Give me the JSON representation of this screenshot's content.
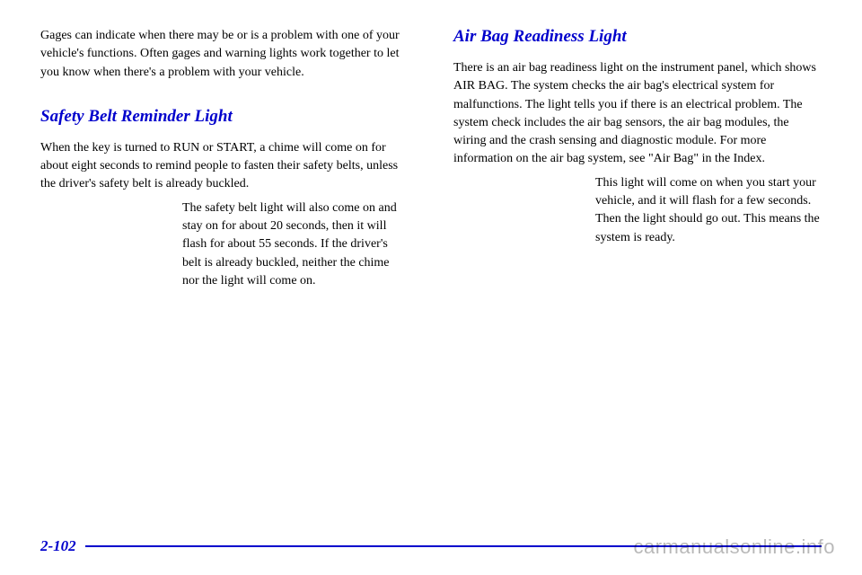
{
  "left": {
    "intro": "Gages can indicate when there may be or is a problem with one of your vehicle's functions. Often gages and warning lights work together to let you know when there's a problem with your vehicle.",
    "heading": "Safety Belt Reminder Light",
    "lead": "When the key is turned to RUN or START, a chime will come on for about eight seconds to remind people to fasten their safety belts, unless the driver's safety belt is already buckled.",
    "caption": "The safety belt light will also come on and stay on for about 20 seconds, then it will flash for about 55 seconds. If the driver's belt is already buckled, neither the chime nor the light will come on."
  },
  "right": {
    "heading": "Air Bag Readiness Light",
    "para1": "There is an air bag readiness light on the instrument panel, which shows AIR BAG. The system checks the air bag's electrical system for malfunctions. The light tells you if there is an electrical problem. The system check includes the air bag sensors, the air bag modules, the wiring and the crash sensing and diagnostic module. For more information on the air bag system, see \"Air Bag\" in the Index.",
    "caption": "This light will come on when you start your vehicle, and it will flash for a few seconds. Then the light should go out. This means the system is ready."
  },
  "pageNumber": "2-102",
  "watermark": "carmanualsonline.info",
  "colors": {
    "accent": "#0000cc"
  }
}
